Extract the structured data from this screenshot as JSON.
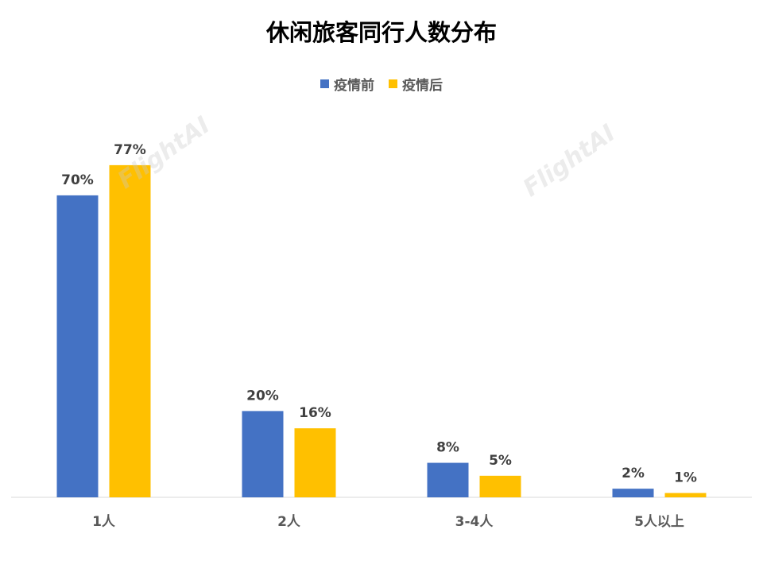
{
  "chart_data": {
    "type": "bar",
    "title": "休闲旅客同行人数分布",
    "categories": [
      "1人",
      "2人",
      "3-4人",
      "5人以上"
    ],
    "series": [
      {
        "name": "疫情前",
        "values": [
          70,
          20,
          8,
          2
        ],
        "labels": [
          "70%",
          "20%",
          "8%",
          "2%"
        ],
        "color": "#4472C4"
      },
      {
        "name": "疫情后",
        "values": [
          77,
          16,
          5,
          1
        ],
        "labels": [
          "77%",
          "16%",
          "5%",
          "1%"
        ],
        "color": "#FFC000"
      }
    ],
    "ylim": [
      0,
      100
    ],
    "unit": "%",
    "legend_position": "top",
    "grid": false
  },
  "watermark": "FlightAI"
}
